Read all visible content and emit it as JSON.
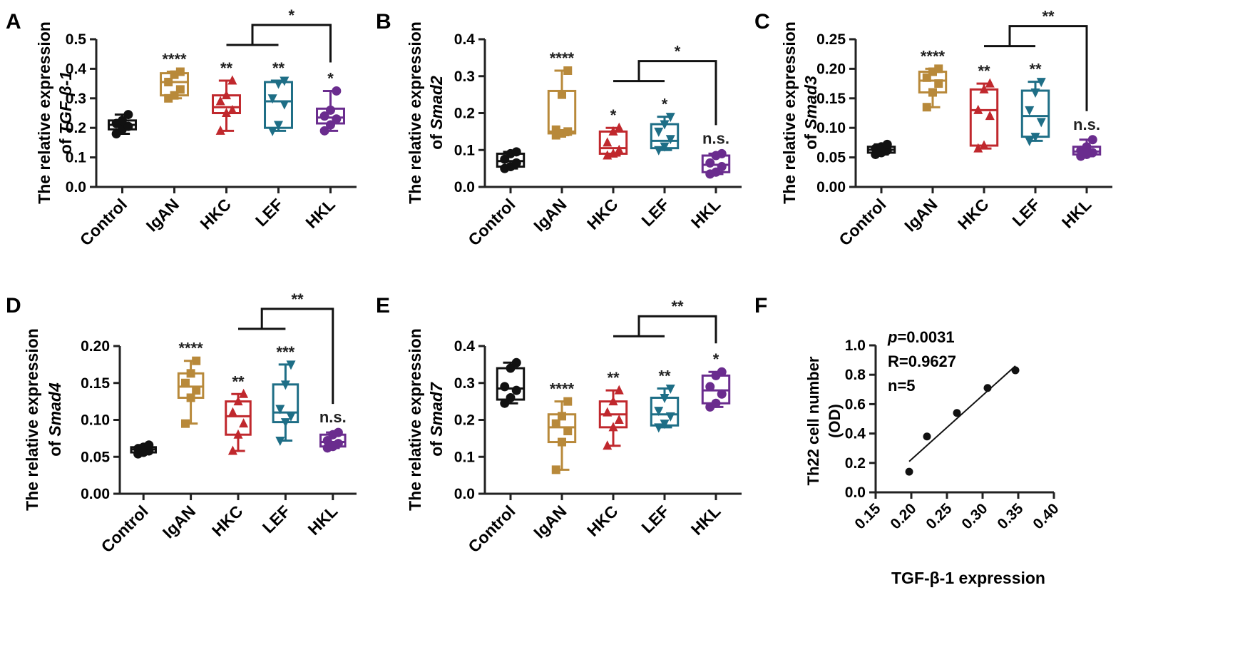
{
  "colors": {
    "Control": "#111111",
    "IgAN": "#b8893a",
    "HKC": "#c0282d",
    "LEF": "#1e6e86",
    "HKL": "#6a2c8e",
    "axis": "#222222"
  },
  "chart_data": [
    {
      "id": "A",
      "type": "box",
      "panel_label": "A",
      "ylabel_line1": "The relative expression",
      "ylabel_line2_prefix": "of ",
      "ylabel_line2_italic": "TGF-β-1",
      "categories": [
        "Control",
        "IgAN",
        "HKC",
        "LEF",
        "HKL"
      ],
      "ylim": [
        0,
        0.5
      ],
      "yticks": [
        0.0,
        0.1,
        0.2,
        0.3,
        0.4,
        0.5
      ],
      "ytick_labels": [
        "0.0",
        "0.1",
        "0.2",
        "0.3",
        "0.4",
        "0.5"
      ],
      "boxes": [
        {
          "min": 0.18,
          "q1": 0.195,
          "median": 0.21,
          "q3": 0.225,
          "max": 0.245,
          "points": [
            0.18,
            0.195,
            0.205,
            0.215,
            0.225,
            0.245
          ]
        },
        {
          "min": 0.3,
          "q1": 0.31,
          "median": 0.355,
          "q3": 0.385,
          "max": 0.39,
          "points": [
            0.3,
            0.31,
            0.33,
            0.355,
            0.38,
            0.39
          ]
        },
        {
          "min": 0.19,
          "q1": 0.25,
          "median": 0.27,
          "q3": 0.31,
          "max": 0.36,
          "points": [
            0.19,
            0.25,
            0.26,
            0.29,
            0.31,
            0.36
          ]
        },
        {
          "min": 0.19,
          "q1": 0.2,
          "median": 0.29,
          "q3": 0.355,
          "max": 0.36,
          "points": [
            0.19,
            0.21,
            0.28,
            0.3,
            0.35,
            0.36
          ]
        },
        {
          "min": 0.19,
          "q1": 0.215,
          "median": 0.235,
          "q3": 0.265,
          "max": 0.325,
          "points": [
            0.19,
            0.21,
            0.23,
            0.24,
            0.26,
            0.325
          ]
        }
      ],
      "sig_labels": [
        "",
        "****",
        "**",
        "**",
        "*"
      ],
      "bracket": {
        "from": [
          2,
          3
        ],
        "to": 4,
        "label": "*"
      }
    },
    {
      "id": "B",
      "type": "box",
      "panel_label": "B",
      "ylabel_line1": "The relative expression",
      "ylabel_line2_prefix": "of ",
      "ylabel_line2_italic": "Smad2",
      "categories": [
        "Control",
        "IgAN",
        "HKC",
        "LEF",
        "HKL"
      ],
      "ylim": [
        0,
        0.4
      ],
      "yticks": [
        0.0,
        0.1,
        0.2,
        0.3,
        0.4
      ],
      "ytick_labels": [
        "0.0",
        "0.1",
        "0.2",
        "0.3",
        "0.4"
      ],
      "boxes": [
        {
          "min": 0.05,
          "q1": 0.055,
          "median": 0.07,
          "q3": 0.09,
          "max": 0.095,
          "points": [
            0.05,
            0.055,
            0.065,
            0.075,
            0.09,
            0.095
          ]
        },
        {
          "min": 0.14,
          "q1": 0.145,
          "median": 0.15,
          "q3": 0.26,
          "max": 0.315,
          "points": [
            0.14,
            0.145,
            0.15,
            0.155,
            0.25,
            0.315
          ]
        },
        {
          "min": 0.085,
          "q1": 0.09,
          "median": 0.105,
          "q3": 0.15,
          "max": 0.16,
          "points": [
            0.085,
            0.09,
            0.1,
            0.12,
            0.15,
            0.16
          ]
        },
        {
          "min": 0.1,
          "q1": 0.105,
          "median": 0.125,
          "q3": 0.17,
          "max": 0.19,
          "points": [
            0.1,
            0.11,
            0.13,
            0.15,
            0.17,
            0.19
          ]
        },
        {
          "min": 0.035,
          "q1": 0.04,
          "median": 0.06,
          "q3": 0.085,
          "max": 0.09,
          "points": [
            0.035,
            0.04,
            0.055,
            0.065,
            0.085,
            0.09
          ]
        }
      ],
      "sig_labels": [
        "",
        "****",
        "*",
        "*",
        "n.s."
      ],
      "bracket": {
        "from": [
          2,
          3
        ],
        "to": 4,
        "label": "*"
      }
    },
    {
      "id": "C",
      "type": "box",
      "panel_label": "C",
      "ylabel_line1": "The relative expression",
      "ylabel_line2_prefix": "of ",
      "ylabel_line2_italic": "Smad3",
      "categories": [
        "Control",
        "IgAN",
        "HKC",
        "LEF",
        "HKL"
      ],
      "ylim": [
        0,
        0.25
      ],
      "yticks": [
        0.0,
        0.05,
        0.1,
        0.15,
        0.2,
        0.25
      ],
      "ytick_labels": [
        "0.00",
        "0.05",
        "0.10",
        "0.15",
        "0.20",
        "0.25"
      ],
      "boxes": [
        {
          "min": 0.055,
          "q1": 0.058,
          "median": 0.063,
          "q3": 0.068,
          "max": 0.072,
          "points": [
            0.055,
            0.058,
            0.062,
            0.065,
            0.068,
            0.072
          ]
        },
        {
          "min": 0.135,
          "q1": 0.16,
          "median": 0.18,
          "q3": 0.195,
          "max": 0.2,
          "points": [
            0.135,
            0.16,
            0.175,
            0.185,
            0.195,
            0.2
          ]
        },
        {
          "min": 0.065,
          "q1": 0.07,
          "median": 0.13,
          "q3": 0.165,
          "max": 0.175,
          "points": [
            0.065,
            0.07,
            0.12,
            0.13,
            0.165,
            0.175
          ]
        },
        {
          "min": 0.078,
          "q1": 0.085,
          "median": 0.12,
          "q3": 0.163,
          "max": 0.178,
          "points": [
            0.078,
            0.085,
            0.11,
            0.13,
            0.16,
            0.178
          ]
        },
        {
          "min": 0.052,
          "q1": 0.055,
          "median": 0.06,
          "q3": 0.068,
          "max": 0.08,
          "points": [
            0.052,
            0.055,
            0.058,
            0.062,
            0.068,
            0.08
          ]
        }
      ],
      "sig_labels": [
        "",
        "****",
        "**",
        "**",
        "n.s."
      ],
      "bracket": {
        "from": [
          2,
          3
        ],
        "to": 4,
        "label": "**"
      }
    },
    {
      "id": "D",
      "type": "box",
      "panel_label": "D",
      "ylabel_line1": "The relative expression",
      "ylabel_line2_prefix": "of ",
      "ylabel_line2_italic": "Smad4",
      "categories": [
        "Control",
        "IgAN",
        "HKC",
        "LEF",
        "HKL"
      ],
      "ylim": [
        0,
        0.2
      ],
      "yticks": [
        0.0,
        0.05,
        0.1,
        0.15,
        0.2
      ],
      "ytick_labels": [
        "0.00",
        "0.05",
        "0.10",
        "0.15",
        "0.20"
      ],
      "boxes": [
        {
          "min": 0.054,
          "q1": 0.056,
          "median": 0.06,
          "q3": 0.063,
          "max": 0.066,
          "points": [
            0.054,
            0.056,
            0.058,
            0.061,
            0.063,
            0.066
          ]
        },
        {
          "min": 0.095,
          "q1": 0.13,
          "median": 0.145,
          "q3": 0.163,
          "max": 0.18,
          "points": [
            0.095,
            0.13,
            0.14,
            0.15,
            0.163,
            0.18
          ]
        },
        {
          "min": 0.058,
          "q1": 0.08,
          "median": 0.105,
          "q3": 0.125,
          "max": 0.135,
          "points": [
            0.058,
            0.08,
            0.095,
            0.11,
            0.125,
            0.135
          ]
        },
        {
          "min": 0.072,
          "q1": 0.097,
          "median": 0.11,
          "q3": 0.148,
          "max": 0.175,
          "points": [
            0.072,
            0.097,
            0.105,
            0.115,
            0.148,
            0.175
          ]
        },
        {
          "min": 0.062,
          "q1": 0.064,
          "median": 0.07,
          "q3": 0.08,
          "max": 0.083,
          "points": [
            0.062,
            0.064,
            0.068,
            0.072,
            0.08,
            0.083
          ]
        }
      ],
      "sig_labels": [
        "",
        "****",
        "**",
        "***",
        "n.s."
      ],
      "bracket": {
        "from": [
          2,
          3
        ],
        "to": 4,
        "label": "**"
      }
    },
    {
      "id": "E",
      "type": "box",
      "panel_label": "E",
      "ylabel_line1": "The relative expression",
      "ylabel_line2_prefix": "of ",
      "ylabel_line2_italic": "Smad7",
      "categories": [
        "Control",
        "IgAN",
        "HKC",
        "LEF",
        "HKL"
      ],
      "ylim": [
        0,
        0.4
      ],
      "yticks": [
        0.0,
        0.1,
        0.2,
        0.3,
        0.4
      ],
      "ytick_labels": [
        "0.0",
        "0.1",
        "0.2",
        "0.3",
        "0.4"
      ],
      "boxes": [
        {
          "min": 0.245,
          "q1": 0.255,
          "median": 0.285,
          "q3": 0.34,
          "max": 0.355,
          "points": [
            0.245,
            0.26,
            0.28,
            0.29,
            0.34,
            0.355
          ]
        },
        {
          "min": 0.065,
          "q1": 0.14,
          "median": 0.18,
          "q3": 0.215,
          "max": 0.25,
          "points": [
            0.065,
            0.14,
            0.17,
            0.19,
            0.21,
            0.25
          ]
        },
        {
          "min": 0.13,
          "q1": 0.18,
          "median": 0.215,
          "q3": 0.25,
          "max": 0.28,
          "points": [
            0.13,
            0.18,
            0.2,
            0.22,
            0.25,
            0.28
          ]
        },
        {
          "min": 0.18,
          "q1": 0.185,
          "median": 0.215,
          "q3": 0.26,
          "max": 0.285,
          "points": [
            0.18,
            0.19,
            0.21,
            0.225,
            0.26,
            0.285
          ]
        },
        {
          "min": 0.235,
          "q1": 0.245,
          "median": 0.28,
          "q3": 0.32,
          "max": 0.33,
          "points": [
            0.235,
            0.245,
            0.27,
            0.29,
            0.32,
            0.33
          ]
        }
      ],
      "sig_labels": [
        "",
        "****",
        "**",
        "**",
        "*"
      ],
      "bracket": {
        "from": [
          2,
          3
        ],
        "to": 4,
        "label": "**"
      }
    },
    {
      "id": "F",
      "type": "scatter",
      "panel_label": "F",
      "xlabel": "TGF-β-1 expression",
      "ylabel_line1": "Th22 cell number",
      "ylabel_line2": "(OD)",
      "xlim": [
        0.15,
        0.4
      ],
      "ylim": [
        0,
        1.0
      ],
      "xticks": [
        0.15,
        0.2,
        0.25,
        0.3,
        0.35,
        0.4
      ],
      "xtick_labels": [
        "0.15",
        "0.20",
        "0.25",
        "0.30",
        "0.35",
        "0.40"
      ],
      "yticks": [
        0.0,
        0.2,
        0.4,
        0.6,
        0.8,
        1.0
      ],
      "ytick_labels": [
        "0.0",
        "0.2",
        "0.4",
        "0.6",
        "0.8",
        "1.0"
      ],
      "x": [
        0.197,
        0.222,
        0.264,
        0.307,
        0.346
      ],
      "y": [
        0.14,
        0.38,
        0.54,
        0.71,
        0.83
      ],
      "fit_line": {
        "x": [
          0.197,
          0.346
        ],
        "y": [
          0.21,
          0.86
        ]
      },
      "stats_p_italic": "p",
      "stats_p_value": "=0.0031",
      "stats_r": "R=0.9627",
      "stats_n": "n=5"
    }
  ]
}
